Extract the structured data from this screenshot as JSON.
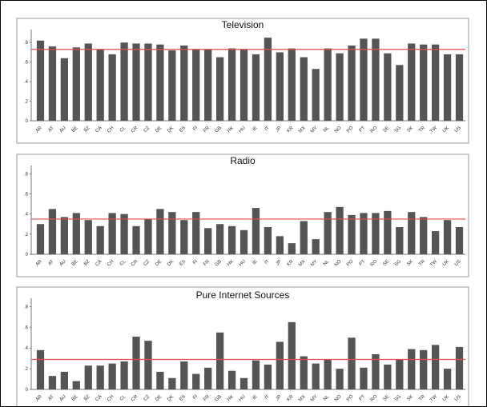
{
  "chart_data": [
    {
      "type": "bar",
      "title": "Television",
      "categories": [
        "AR",
        "AT",
        "AU",
        "BE",
        "BZ",
        "CA",
        "CH",
        "CL",
        "CR",
        "CZ",
        "DE",
        "DK",
        "ES",
        "FI",
        "FR",
        "GB",
        "HK",
        "HU",
        "IE",
        "IT",
        "JP",
        "KR",
        "MX",
        "MY",
        "NL",
        "NO",
        "PO",
        "PT",
        "RO",
        "SE",
        "SG",
        "SK",
        "TR",
        "TW",
        "UK",
        "US"
      ],
      "values": [
        0.82,
        0.76,
        0.64,
        0.75,
        0.79,
        0.73,
        0.68,
        0.8,
        0.79,
        0.79,
        0.78,
        0.72,
        0.77,
        0.73,
        0.73,
        0.65,
        0.74,
        0.73,
        0.68,
        0.85,
        0.7,
        0.74,
        0.65,
        0.53,
        0.74,
        0.69,
        0.77,
        0.84,
        0.84,
        0.69,
        0.57,
        0.79,
        0.78,
        0.78,
        0.68,
        0.68
      ],
      "reference_line": 0.73,
      "yticks": [
        "0",
        ".2",
        ".4",
        ".6",
        ".8"
      ],
      "ylim": [
        0,
        0.9
      ],
      "colors": {
        "bar": "#555555",
        "reference": "#e64b4b"
      }
    },
    {
      "type": "bar",
      "title": "Radio",
      "categories": [
        "AR",
        "AT",
        "AU",
        "BE",
        "BZ",
        "CA",
        "CH",
        "CL",
        "CR",
        "CZ",
        "DE",
        "DK",
        "ES",
        "FI",
        "FR",
        "GB",
        "HK",
        "HU",
        "IE",
        "IT",
        "JP",
        "KR",
        "MX",
        "MY",
        "NL",
        "NO",
        "PO",
        "PT",
        "RO",
        "SE",
        "SG",
        "SK",
        "TR",
        "TW",
        "UK",
        "US"
      ],
      "values": [
        0.3,
        0.45,
        0.37,
        0.41,
        0.34,
        0.28,
        0.41,
        0.4,
        0.28,
        0.35,
        0.45,
        0.42,
        0.34,
        0.42,
        0.26,
        0.3,
        0.28,
        0.24,
        0.46,
        0.27,
        0.18,
        0.11,
        0.33,
        0.15,
        0.42,
        0.47,
        0.39,
        0.41,
        0.41,
        0.43,
        0.27,
        0.42,
        0.37,
        0.23,
        0.34,
        0.27
      ],
      "reference_line": 0.35,
      "yticks": [
        "0",
        ".2",
        ".4",
        ".6",
        ".8"
      ],
      "ylim": [
        0,
        0.85
      ],
      "colors": {
        "bar": "#555555",
        "reference": "#e64b4b"
      }
    },
    {
      "type": "bar",
      "title": "Pure Internet Sources",
      "categories": [
        "AR",
        "AT",
        "AU",
        "BE",
        "BZ",
        "CA",
        "CH",
        "CL",
        "CR",
        "CZ",
        "DE",
        "DK",
        "ES",
        "FI",
        "FR",
        "GB",
        "HK",
        "HU",
        "IE",
        "IT",
        "JP",
        "KR",
        "MX",
        "MY",
        "NL",
        "NO",
        "PO",
        "PT",
        "RO",
        "SE",
        "SG",
        "SK",
        "TR",
        "TW",
        "UK",
        "US"
      ],
      "values": [
        0.38,
        0.13,
        0.17,
        0.08,
        0.23,
        0.23,
        0.25,
        0.27,
        0.51,
        0.47,
        0.17,
        0.11,
        0.27,
        0.15,
        0.21,
        0.55,
        0.18,
        0.11,
        0.28,
        0.24,
        0.46,
        0.65,
        0.32,
        0.25,
        0.29,
        0.2,
        0.5,
        0.21,
        0.34,
        0.24,
        0.29,
        0.39,
        0.38,
        0.43,
        0.2,
        0.41
      ],
      "reference_line": 0.29,
      "yticks": [
        "0",
        ".2",
        ".4",
        ".6",
        ".8"
      ],
      "ylim": [
        0,
        0.85
      ],
      "colors": {
        "bar": "#555555",
        "reference": "#e64b4b"
      }
    }
  ]
}
